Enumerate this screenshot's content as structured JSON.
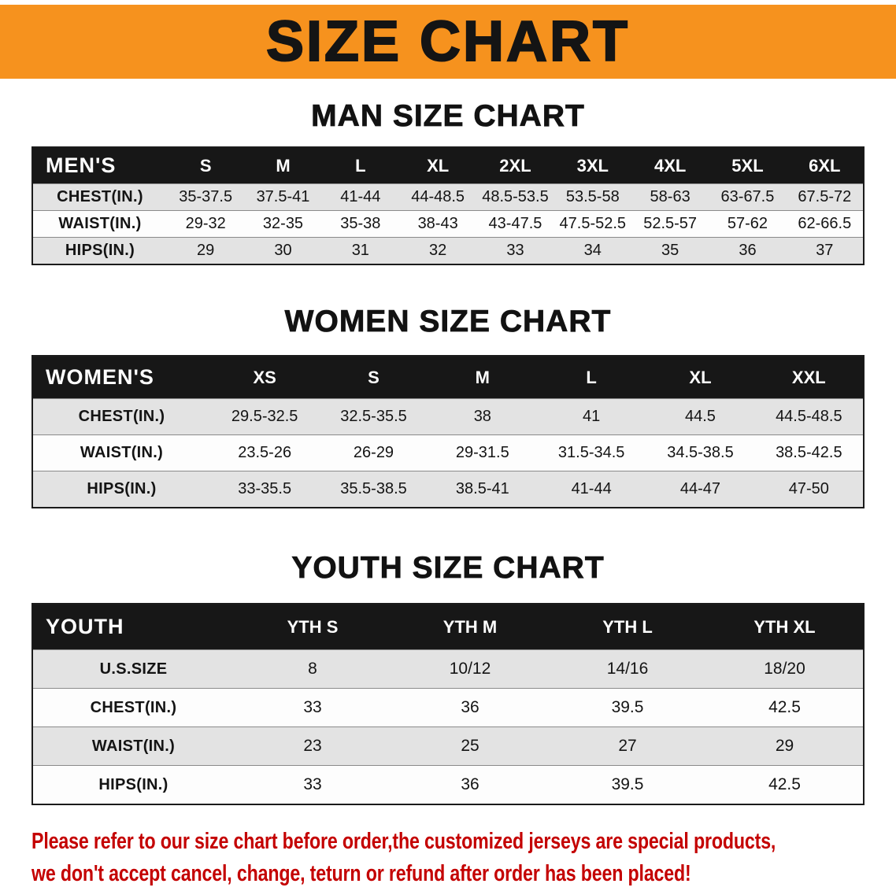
{
  "banner": {
    "title": "SIZE CHART"
  },
  "colors": {
    "banner_bg": "#f6921e",
    "table_header_bg": "#171717",
    "row_stripe": "#e3e3e3",
    "note_red": "#c40000"
  },
  "sections": [
    {
      "heading": "MAN SIZE CHART",
      "table": {
        "header_label": "MEN'S",
        "columns": [
          "S",
          "M",
          "L",
          "XL",
          "2XL",
          "3XL",
          "4XL",
          "5XL",
          "6XL"
        ],
        "rows": [
          {
            "label": "CHEST(IN.)",
            "values": [
              "35-37.5",
              "37.5-41",
              "41-44",
              "44-48.5",
              "48.5-53.5",
              "53.5-58",
              "58-63",
              "63-67.5",
              "67.5-72"
            ]
          },
          {
            "label": "WAIST(IN.)",
            "values": [
              "29-32",
              "32-35",
              "35-38",
              "38-43",
              "43-47.5",
              "47.5-52.5",
              "52.5-57",
              "57-62",
              "62-66.5"
            ]
          },
          {
            "label": "HIPS(IN.)",
            "values": [
              "29",
              "30",
              "31",
              "32",
              "33",
              "34",
              "35",
              "36",
              "37"
            ]
          }
        ]
      }
    },
    {
      "heading": "WOMEN SIZE CHART",
      "table": {
        "header_label": "WOMEN'S",
        "columns": [
          "XS",
          "S",
          "M",
          "L",
          "XL",
          "XXL"
        ],
        "rows": [
          {
            "label": "CHEST(IN.)",
            "values": [
              "29.5-32.5",
              "32.5-35.5",
              "38",
              "41",
              "44.5",
              "44.5-48.5"
            ]
          },
          {
            "label": "WAIST(IN.)",
            "values": [
              "23.5-26",
              "26-29",
              "29-31.5",
              "31.5-34.5",
              "34.5-38.5",
              "38.5-42.5"
            ]
          },
          {
            "label": "HIPS(IN.)",
            "values": [
              "33-35.5",
              "35.5-38.5",
              "38.5-41",
              "41-44",
              "44-47",
              "47-50"
            ]
          }
        ]
      }
    },
    {
      "heading": "YOUTH SIZE CHART",
      "table": {
        "header_label": "YOUTH",
        "columns": [
          "YTH S",
          "YTH M",
          "YTH L",
          "YTH XL"
        ],
        "rows": [
          {
            "label": "U.S.SIZE",
            "values": [
              "8",
              "10/12",
              "14/16",
              "18/20"
            ]
          },
          {
            "label": "CHEST(IN.)",
            "values": [
              "33",
              "36",
              "39.5",
              "42.5"
            ]
          },
          {
            "label": "WAIST(IN.)",
            "values": [
              "23",
              "25",
              "27",
              "29"
            ]
          },
          {
            "label": "HIPS(IN.)",
            "values": [
              "33",
              "36",
              "39.5",
              "42.5"
            ]
          }
        ]
      }
    }
  ],
  "footer": {
    "lines": [
      "Please refer to our size chart before order,the customized jerseys are special products,",
      "we don't accept cancel, change, teturn or refund after order has been placed!"
    ]
  }
}
